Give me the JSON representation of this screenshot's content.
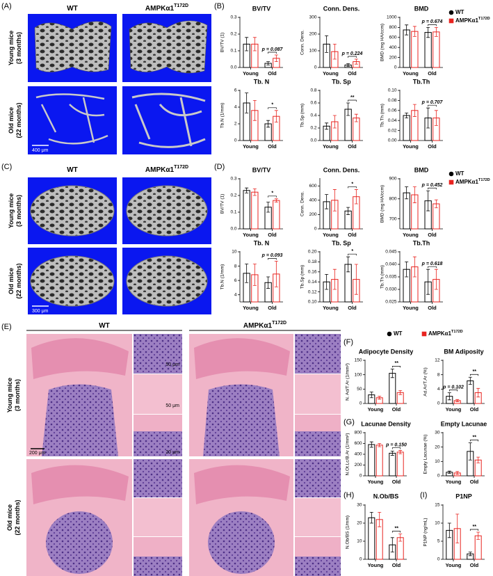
{
  "panel_labels": [
    "(A)",
    "(B)",
    "(C)",
    "(D)",
    "(E)",
    "(F)",
    "(G)",
    "(H)",
    "(I)"
  ],
  "genotypes": [
    {
      "name": "WT",
      "color": "#000000"
    },
    {
      "name": "AMPKα1",
      "superscript": "T172D",
      "color": "#e8231f"
    }
  ],
  "row_labels": [
    [
      "Young mice",
      "(3 months)"
    ],
    [
      "Old mice",
      "(22 months)"
    ]
  ],
  "scale_bars": {
    "A": "400 μm",
    "C": "300 μm",
    "E": [
      "200 μm",
      "50 μm",
      "50 μm",
      "20 μm"
    ]
  },
  "chart_data": [
    {
      "type": "bar",
      "title": "BV/TV",
      "ylabel": "BV/TV (1)",
      "categories": [
        "Young",
        "Old"
      ],
      "series": [
        {
          "values": [
            0.14,
            0.025
          ],
          "errors": [
            0.04,
            0.01
          ]
        },
        {
          "values": [
            0.14,
            0.055
          ],
          "errors": [
            0.04,
            0.02
          ]
        }
      ],
      "ylim": [
        0,
        0.3
      ],
      "yticks": [
        {
          "value": 0,
          "label": "0.0"
        },
        0.1,
        0.2,
        0.3
      ],
      "annotations": [
        {
          "category": "Old",
          "text": "p = 0.087"
        }
      ]
    },
    {
      "type": "bar",
      "title": "Conn. Dens.",
      "ylabel": "Conn. Dens.",
      "categories": [
        "Young",
        "Old"
      ],
      "series": [
        {
          "values": [
            140,
            15
          ],
          "errors": [
            50,
            8
          ]
        },
        {
          "values": [
            95,
            35
          ],
          "errors": [
            45,
            15
          ]
        }
      ],
      "ylim": [
        0,
        300
      ],
      "yticks": [
        0,
        100,
        200,
        300
      ],
      "annotations": [
        {
          "category": "Old",
          "text": "p = 0.224"
        }
      ]
    },
    {
      "type": "bar",
      "title": "BMD",
      "ylabel": "BMD (mg HA/ccm)",
      "categories": [
        "Young",
        "Old"
      ],
      "series": [
        {
          "values": [
            750,
            700
          ],
          "errors": [
            100,
            100
          ]
        },
        {
          "values": [
            720,
            710
          ],
          "errors": [
            100,
            90
          ]
        }
      ],
      "ylim": [
        0,
        1000
      ],
      "yticks": [
        0,
        200,
        400,
        600,
        800,
        1000
      ],
      "annotations": [
        {
          "category": "Old",
          "text": "p = 0.674"
        }
      ]
    },
    {
      "type": "bar",
      "title": "Tb. N",
      "ylabel": "Tb.N (1/mm)",
      "categories": [
        "Young",
        "Old"
      ],
      "series": [
        {
          "values": [
            4.5,
            2.0
          ],
          "errors": [
            1.2,
            0.4
          ]
        },
        {
          "values": [
            3.6,
            2.9
          ],
          "errors": [
            1.2,
            0.7
          ]
        }
      ],
      "ylim": [
        0,
        6
      ],
      "yticks": [
        0,
        2,
        4,
        6
      ],
      "annotations": [
        {
          "category": "Old",
          "text": "*"
        }
      ]
    },
    {
      "type": "bar",
      "title": "Tb. Sp",
      "ylabel": "Tb.Sp (mm)",
      "categories": [
        "Young",
        "Old"
      ],
      "series": [
        {
          "values": [
            0.23,
            0.5
          ],
          "errors": [
            0.05,
            0.1
          ]
        },
        {
          "values": [
            0.3,
            0.36
          ],
          "errors": [
            0.1,
            0.06
          ]
        }
      ],
      "ylim": [
        0,
        0.8
      ],
      "yticks": [
        {
          "value": 0,
          "label": "0.0"
        },
        0.2,
        0.4,
        0.6,
        0.8
      ],
      "annotations": [
        {
          "category": "Old",
          "text": "**"
        }
      ]
    },
    {
      "type": "bar",
      "title": "Tb.Th",
      "ylabel": "Tb.Th (mm)",
      "categories": [
        "Young",
        "Old"
      ],
      "series": [
        {
          "values": [
            0.05,
            0.045
          ],
          "errors": [
            0.005,
            0.02
          ]
        },
        {
          "values": [
            0.06,
            0.045
          ],
          "errors": [
            0.012,
            0.015
          ]
        }
      ],
      "ylim": [
        0,
        0.1
      ],
      "yticks": [
        {
          "value": 0,
          "label": "0.00"
        },
        0.02,
        0.04,
        0.06,
        0.08,
        {
          "value": 0.1,
          "label": "0.10"
        }
      ],
      "annotations": [
        {
          "category": "Old",
          "text": "p = 0.707"
        }
      ]
    },
    {
      "type": "bar",
      "title": "BV/TV",
      "ylabel": "BV/TV (1)",
      "categories": [
        "Young",
        "Old"
      ],
      "series": [
        {
          "values": [
            0.23,
            0.13
          ],
          "errors": [
            0.015,
            0.03
          ]
        },
        {
          "values": [
            0.22,
            0.17
          ],
          "errors": [
            0.02,
            0.01
          ]
        }
      ],
      "ylim": [
        0,
        0.3
      ],
      "yticks": [
        {
          "value": 0,
          "label": "0.0"
        },
        0.1,
        0.2,
        0.3
      ],
      "annotations": [
        {
          "category": "Old",
          "text": "*"
        }
      ]
    },
    {
      "type": "bar",
      "title": "Conn. Dens.",
      "ylabel": "Conn. Dens.",
      "categories": [
        "Young",
        "Old"
      ],
      "series": [
        {
          "values": [
            380,
            250
          ],
          "errors": [
            100,
            50
          ]
        },
        {
          "values": [
            400,
            450
          ],
          "errors": [
            150,
            100
          ]
        }
      ],
      "ylim": [
        0,
        700
      ],
      "yticks": [
        0,
        200,
        400,
        600
      ],
      "annotations": [
        {
          "category": "Old",
          "text": "*"
        }
      ]
    },
    {
      "type": "bar",
      "title": "BMD",
      "ylabel": "BMD (mg HA/ccm)",
      "categories": [
        "Young",
        "Old"
      ],
      "series": [
        {
          "values": [
            830,
            790
          ],
          "errors": [
            30,
            50
          ]
        },
        {
          "values": [
            820,
            775
          ],
          "errors": [
            40,
            20
          ]
        }
      ],
      "ylim": [
        650,
        900
      ],
      "yticks": [
        700,
        800,
        900
      ],
      "annotations": [
        {
          "category": "Old",
          "text": "p = 0.452"
        }
      ]
    },
    {
      "type": "bar",
      "title": "Tb. N",
      "ylabel": "Tb.N (1/mm)",
      "categories": [
        "Young",
        "Old"
      ],
      "series": [
        {
          "values": [
            7.0,
            5.7
          ],
          "errors": [
            1.3,
            0.8
          ]
        },
        {
          "values": [
            6.8,
            6.9
          ],
          "errors": [
            1.5,
            1.8
          ]
        }
      ],
      "ylim": [
        3,
        10
      ],
      "yticks": [
        4,
        6,
        8,
        10
      ],
      "annotations": [
        {
          "category": "Old",
          "text": "p = 0.093"
        }
      ]
    },
    {
      "type": "bar",
      "title": "Tb. Sp",
      "ylabel": "Tb.Sp (mm)",
      "categories": [
        "Young",
        "Old"
      ],
      "series": [
        {
          "values": [
            0.14,
            0.175
          ],
          "errors": [
            0.015,
            0.015
          ]
        },
        {
          "values": [
            0.145,
            0.145
          ],
          "errors": [
            0.02,
            0.03
          ]
        }
      ],
      "ylim": [
        0.1,
        0.2
      ],
      "yticks": [
        {
          "value": 0.1,
          "label": "0.10"
        },
        0.12,
        0.14,
        0.16,
        0.18,
        {
          "value": 0.2,
          "label": "0.20"
        }
      ],
      "annotations": [
        {
          "category": "Old",
          "text": "*"
        }
      ]
    },
    {
      "type": "bar",
      "title": "Tb.Th",
      "ylabel": "Tb.Th (mm)",
      "categories": [
        "Young",
        "Old"
      ],
      "series": [
        {
          "values": [
            0.038,
            0.033
          ],
          "errors": [
            0.003,
            0.005
          ]
        },
        {
          "values": [
            0.039,
            0.034
          ],
          "errors": [
            0.004,
            0.004
          ]
        }
      ],
      "ylim": [
        0.025,
        0.045
      ],
      "yticks": [
        0.025,
        {
          "value": 0.03,
          "label": "0.030"
        },
        0.035,
        {
          "value": 0.04,
          "label": "0.040"
        },
        0.045
      ],
      "annotations": [
        {
          "category": "Old",
          "text": "p = 0.618"
        }
      ]
    },
    {
      "type": "bar",
      "title": "Adipocyte Density",
      "ylabel": "N. Ad/T.Ar (1/mm²)",
      "categories": [
        "Young",
        "Old"
      ],
      "series": [
        {
          "values": [
            30,
            105
          ],
          "errors": [
            10,
            15
          ]
        },
        {
          "values": [
            20,
            38
          ],
          "errors": [
            5,
            7
          ]
        }
      ],
      "ylim": [
        0,
        150
      ],
      "yticks": [
        0,
        50,
        100,
        150
      ],
      "annotations": [
        {
          "category": "Old",
          "text": "**"
        }
      ]
    },
    {
      "type": "bar",
      "title": "BM Adiposity",
      "ylabel": "Ad.Ar/T.Ar (%)",
      "categories": [
        "Young",
        "Old"
      ],
      "series": [
        {
          "values": [
            2.0,
            6.3
          ],
          "errors": [
            1,
            1
          ]
        },
        {
          "values": [
            0.8,
            3
          ],
          "errors": [
            0.3,
            1.2
          ]
        }
      ],
      "ylim": [
        0,
        12
      ],
      "yticks": [
        0,
        4,
        8,
        12
      ],
      "annotations": [
        {
          "category": "Young",
          "text": "p = 0.102"
        },
        {
          "category": "Old",
          "text": "**"
        }
      ]
    },
    {
      "type": "bar",
      "title": "Lacunae Density",
      "ylabel": "N.Ot.Lc/B.Ar (1/mm²)",
      "categories": [
        "Young",
        "Old"
      ],
      "series": [
        {
          "values": [
            580,
            420
          ],
          "errors": [
            50,
            40
          ]
        },
        {
          "values": [
            570,
            440
          ],
          "errors": [
            30,
            30
          ]
        }
      ],
      "ylim": [
        0,
        800
      ],
      "yticks": [
        0,
        200,
        400,
        600,
        800
      ],
      "annotations": [
        {
          "category": "Old",
          "text": "p = 0.150"
        }
      ]
    },
    {
      "type": "bar",
      "title": "Empty Lacunae",
      "ylabel": "Empty Lacunae (%)",
      "categories": [
        "Young",
        "Old"
      ],
      "series": [
        {
          "values": [
            2.5,
            17
          ],
          "errors": [
            0.8,
            6
          ]
        },
        {
          "values": [
            2,
            11
          ],
          "errors": [
            1,
            2
          ]
        }
      ],
      "ylim": [
        0,
        30
      ],
      "yticks": [
        0,
        10,
        20,
        30
      ],
      "annotations": [
        {
          "category": "Old",
          "text": "**"
        }
      ]
    },
    {
      "type": "bar",
      "title": "N.Ob/BS",
      "ylabel": "N.Ob/BS (1/mm)",
      "categories": [
        "Young",
        "Old"
      ],
      "series": [
        {
          "values": [
            23,
            8
          ],
          "errors": [
            3,
            4
          ]
        },
        {
          "values": [
            22,
            12
          ],
          "errors": [
            4,
            2
          ]
        }
      ],
      "ylim": [
        0,
        30
      ],
      "yticks": [
        0,
        10,
        20,
        30
      ],
      "annotations": [
        {
          "category": "Old",
          "text": "**"
        }
      ]
    },
    {
      "type": "bar",
      "title": "P1NP",
      "ylabel": "P1NP (ng/mL)",
      "categories": [
        "Young",
        "Old"
      ],
      "series": [
        {
          "values": [
            8,
            1.5
          ],
          "errors": [
            2,
            0.5
          ]
        },
        {
          "values": [
            8.5,
            6.5
          ],
          "errors": [
            4,
            1
          ]
        }
      ],
      "ylim": [
        0,
        15
      ],
      "yticks": [
        0,
        5,
        10,
        15
      ],
      "annotations": [
        {
          "category": "Old",
          "text": "**"
        }
      ]
    }
  ]
}
